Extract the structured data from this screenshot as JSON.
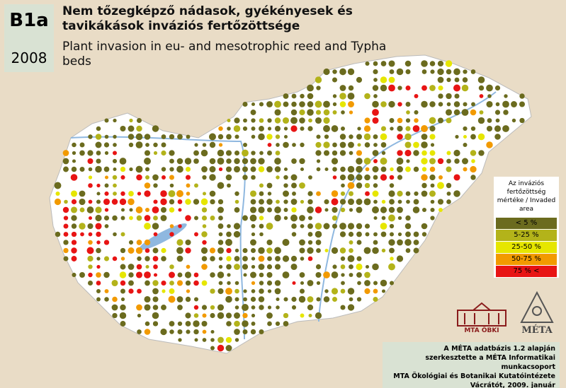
{
  "header": {
    "code": "B1a",
    "year": "2008",
    "title_hu": "Nem tőzegképző nádasok, gyékényesek és tavikákások inváziós fertőzöttsége",
    "title_en": "Plant invasion in eu- and mesotrophic reed and Typha beds"
  },
  "legend": {
    "title": "Az inváziós fertőzöttség mértéke / Invaded area",
    "items": [
      {
        "label": "< 5 %",
        "color": "#6b6b1e"
      },
      {
        "label": "5-25 %",
        "color": "#b3b31a"
      },
      {
        "label": "25-50 %",
        "color": "#e6e600"
      },
      {
        "label": "50-75 %",
        "color": "#f29a00"
      },
      {
        "label": "75 % <",
        "color": "#e81414"
      }
    ]
  },
  "logos": [
    "MTA ÖBKI",
    "MÉTA"
  ],
  "credits": [
    "A MÉTA adatbázis 1.2 alapján",
    "szerkesztette a MÉTA Informatikai munkacsoport",
    "MTA Ökológiai és Botanikai Kutatóintézete",
    "Vácrátót, 2009. január"
  ]
}
